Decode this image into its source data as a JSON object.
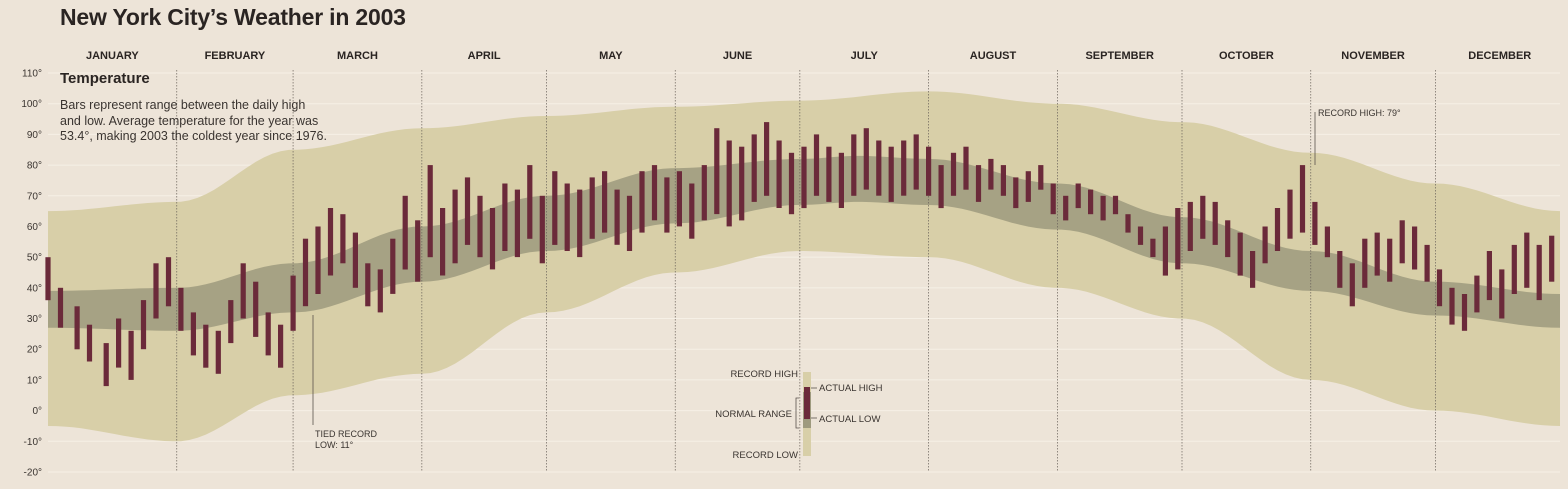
{
  "page": {
    "title": "New York City’s Weather in 2003",
    "subtitle": "Temperature",
    "description": [
      "Bars represent range between the daily high",
      "and low. Average temperature for the year was",
      "53.4°, making 2003 the coldest year since 1976."
    ]
  },
  "colors": {
    "background": "#ede4d8",
    "record_band": "#d8cfa8",
    "normal_band": "#9e9a7e",
    "actual_bar": "#6b2a3a"
  },
  "chart_data": {
    "type": "bar",
    "title": "New York City’s Weather in 2003",
    "subtitle": "Temperature",
    "xlabel": "",
    "ylabel": "",
    "ylim": [
      -20,
      110
    ],
    "yticks": [
      -20,
      -10,
      0,
      10,
      20,
      30,
      40,
      50,
      60,
      70,
      80,
      90,
      100,
      110
    ],
    "ytick_labels": [
      "-20°",
      "-10°",
      "0°",
      "10°",
      "20°",
      "30°",
      "40°",
      "50°",
      "60°",
      "70°",
      "80°",
      "90°",
      "100°",
      "110°"
    ],
    "months": [
      "JANUARY",
      "FEBRUARY",
      "MARCH",
      "APRIL",
      "MAY",
      "JUNE",
      "JULY",
      "AUGUST",
      "SEPTEMBER",
      "OCTOBER",
      "NOVEMBER",
      "DECEMBER"
    ],
    "normal_range": {
      "day": [
        1,
        32,
        60,
        91,
        121,
        152,
        182,
        196,
        213,
        244,
        274,
        305,
        335,
        365
      ],
      "low": [
        27,
        26,
        32,
        42,
        52,
        61,
        67,
        68,
        67,
        59,
        48,
        39,
        31,
        27
      ],
      "high": [
        39,
        40,
        48,
        60,
        70,
        79,
        82,
        83,
        82,
        74,
        63,
        52,
        42,
        38
      ]
    },
    "record_range": {
      "day": [
        1,
        32,
        60,
        91,
        121,
        152,
        182,
        213,
        244,
        274,
        305,
        335,
        365
      ],
      "low": [
        -5,
        -10,
        5,
        12,
        32,
        45,
        52,
        50,
        40,
        30,
        10,
        0,
        -5
      ],
      "high": [
        65,
        68,
        85,
        92,
        96,
        99,
        101,
        104,
        100,
        94,
        84,
        74,
        65
      ]
    },
    "actual": {
      "day": [
        1,
        4,
        8,
        11,
        15,
        18,
        21,
        24,
        27,
        30,
        33,
        36,
        39,
        42,
        45,
        48,
        51,
        54,
        57,
        60,
        63,
        66,
        69,
        72,
        75,
        78,
        81,
        84,
        87,
        90,
        93,
        96,
        99,
        102,
        105,
        108,
        111,
        114,
        117,
        120,
        123,
        126,
        129,
        132,
        135,
        138,
        141,
        144,
        147,
        150,
        153,
        156,
        159,
        162,
        165,
        168,
        171,
        174,
        177,
        180,
        183,
        186,
        189,
        192,
        195,
        198,
        201,
        204,
        207,
        210,
        213,
        216,
        219,
        222,
        225,
        228,
        231,
        234,
        237,
        240,
        243,
        246,
        249,
        252,
        255,
        258,
        261,
        264,
        267,
        270,
        273,
        276,
        279,
        282,
        285,
        288,
        291,
        294,
        297,
        300,
        303,
        306,
        309,
        312,
        315,
        318,
        321,
        324,
        327,
        330,
        333,
        336,
        339,
        342,
        345,
        348,
        351,
        354,
        357,
        360,
        363
      ],
      "low": [
        36,
        27,
        20,
        16,
        8,
        14,
        10,
        20,
        30,
        34,
        26,
        18,
        14,
        12,
        22,
        30,
        24,
        18,
        14,
        26,
        34,
        38,
        44,
        48,
        40,
        34,
        32,
        38,
        46,
        42,
        50,
        44,
        48,
        54,
        50,
        46,
        52,
        50,
        56,
        48,
        54,
        52,
        50,
        56,
        58,
        54,
        52,
        58,
        62,
        58,
        60,
        56,
        62,
        64,
        60,
        62,
        68,
        70,
        66,
        64,
        66,
        70,
        68,
        66,
        70,
        72,
        70,
        68,
        70,
        72,
        70,
        66,
        70,
        72,
        68,
        72,
        70,
        66,
        68,
        72,
        64,
        62,
        66,
        64,
        62,
        64,
        58,
        54,
        50,
        44,
        46,
        52,
        56,
        54,
        50,
        44,
        40,
        48,
        52,
        56,
        58,
        54,
        50,
        40,
        34,
        40,
        44,
        42,
        48,
        46,
        42,
        34,
        28,
        26,
        32,
        36,
        30,
        38,
        40,
        36,
        42
      ],
      "high": [
        50,
        40,
        34,
        28,
        22,
        30,
        26,
        36,
        48,
        50,
        40,
        32,
        28,
        26,
        36,
        48,
        42,
        32,
        28,
        44,
        56,
        60,
        66,
        64,
        58,
        48,
        46,
        56,
        70,
        62,
        80,
        66,
        72,
        76,
        70,
        66,
        74,
        72,
        80,
        70,
        78,
        74,
        72,
        76,
        78,
        72,
        70,
        78,
        80,
        76,
        78,
        74,
        80,
        92,
        88,
        86,
        90,
        94,
        88,
        84,
        86,
        90,
        86,
        84,
        90,
        92,
        88,
        86,
        88,
        90,
        86,
        80,
        84,
        86,
        80,
        82,
        80,
        76,
        78,
        80,
        74,
        70,
        74,
        72,
        70,
        70,
        64,
        60,
        56,
        60,
        66,
        68,
        70,
        68,
        62,
        58,
        52,
        60,
        66,
        72,
        80,
        68,
        60,
        52,
        48,
        56,
        58,
        56,
        62,
        60,
        54,
        46,
        40,
        38,
        44,
        52,
        46,
        54,
        58,
        54,
        57
      ]
    },
    "annotations": {
      "tied_record_line1": "TIED RECORD",
      "tied_record_line2": "LOW: 11°",
      "record_high": "RECORD HIGH: 79°"
    },
    "legend": {
      "record_high": "RECORD HIGH",
      "normal_range": "NORMAL RANGE",
      "record_low": "RECORD LOW",
      "actual_high": "ACTUAL HIGH",
      "actual_low": "ACTUAL LOW"
    }
  }
}
